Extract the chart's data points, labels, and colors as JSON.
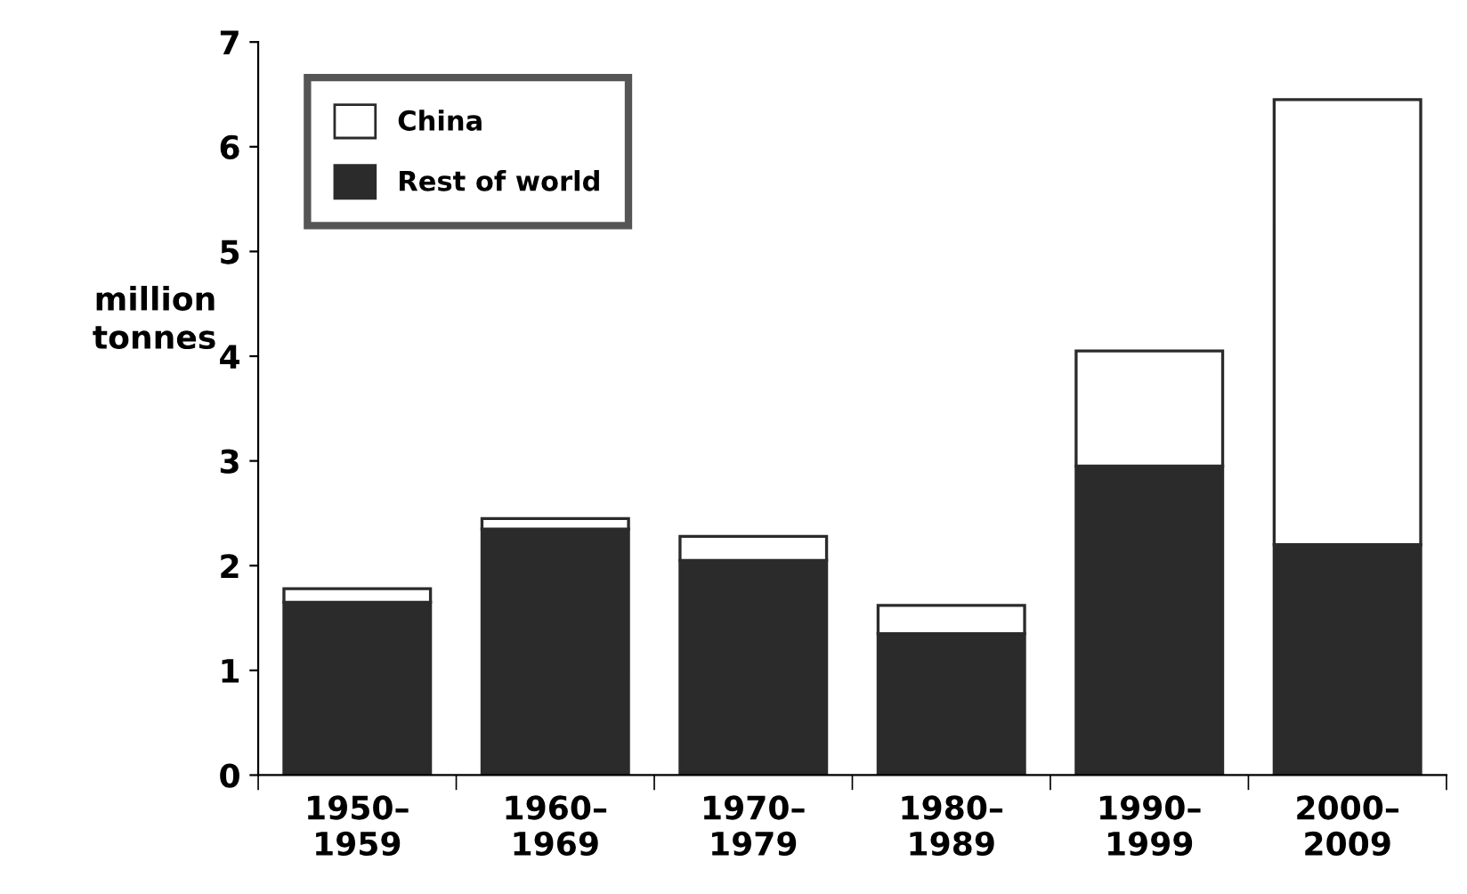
{
  "chart_data": {
    "type": "bar",
    "stacked": true,
    "ylabel": "million\ntonnes",
    "categories": [
      "1950–\n1959",
      "1960–\n1969",
      "1970–\n1979",
      "1980–\n1989",
      "1990–\n1999",
      "2000–\n2009"
    ],
    "series": [
      {
        "name": "Rest of world",
        "color": "#2b2b2b",
        "values": [
          1.65,
          2.35,
          2.05,
          1.35,
          2.95,
          2.2
        ]
      },
      {
        "name": "China",
        "color": "#ffffff",
        "values": [
          0.13,
          0.1,
          0.23,
          0.27,
          1.1,
          4.25
        ]
      }
    ],
    "ylim": [
      0,
      7
    ],
    "yticks": [
      0,
      1,
      2,
      3,
      4,
      5,
      6,
      7
    ],
    "grid": false,
    "legend": "top left"
  }
}
